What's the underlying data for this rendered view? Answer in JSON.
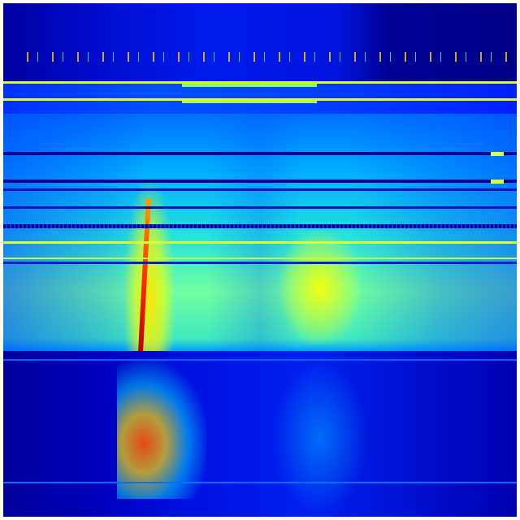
{
  "colormap": "jet",
  "colors": {
    "background": "#00007f",
    "low": "#0000ff",
    "mid": "#00ffff",
    "high": "#ffff00",
    "peak": "#ff0000",
    "border": "#ffffff"
  }
}
